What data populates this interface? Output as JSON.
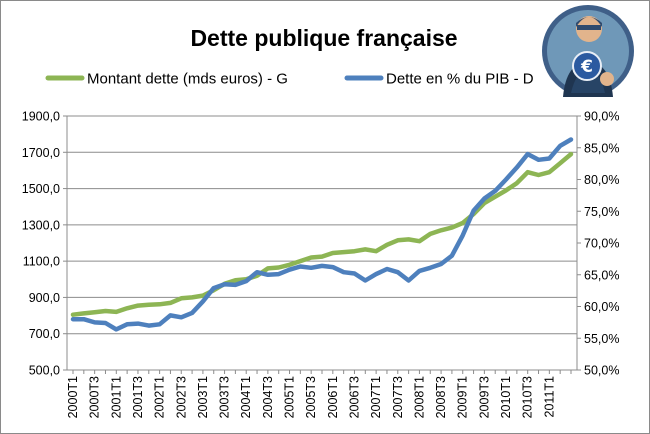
{
  "chart_data": {
    "type": "line",
    "title": "Dette publique française",
    "grid": "horizontal",
    "legend_position": "top",
    "y_left": {
      "ylim": [
        500,
        1900
      ],
      "ticks": [
        "500,0",
        "700,0",
        "900,0",
        "1100,0",
        "1300,0",
        "1500,0",
        "1700,0",
        "1900,0"
      ]
    },
    "y_right": {
      "ylim": [
        50,
        90
      ],
      "ticks": [
        "50,0%",
        "55,0%",
        "60,0%",
        "65,0%",
        "70,0%",
        "75,0%",
        "80,0%",
        "85,0%",
        "90,0%"
      ]
    },
    "x_tick_labels": [
      "2000T1",
      "2000T3",
      "2001T1",
      "2001T3",
      "2002T1",
      "2002T3",
      "2003T1",
      "2003T3",
      "2004T1",
      "2004T3",
      "2005T1",
      "2005T3",
      "2006T1",
      "2006T3",
      "2007T1",
      "2007T3",
      "2008T1",
      "2008T3",
      "2009T1",
      "2009T3",
      "2010T1",
      "2010T3",
      "2011T1"
    ],
    "categories": [
      "2000T1",
      "2000T2",
      "2000T3",
      "2000T4",
      "2001T1",
      "2001T2",
      "2001T3",
      "2001T4",
      "2002T1",
      "2002T2",
      "2002T3",
      "2002T4",
      "2003T1",
      "2003T2",
      "2003T3",
      "2003T4",
      "2004T1",
      "2004T2",
      "2004T3",
      "2004T4",
      "2005T1",
      "2005T2",
      "2005T3",
      "2005T4",
      "2006T1",
      "2006T2",
      "2006T3",
      "2006T4",
      "2007T1",
      "2007T2",
      "2007T3",
      "2007T4",
      "2008T1",
      "2008T2",
      "2008T3",
      "2008T4",
      "2009T1",
      "2009T2",
      "2009T3",
      "2009T4",
      "2010T1",
      "2010T2",
      "2010T3",
      "2010T4",
      "2011T1",
      "2011T2",
      "2011T3"
    ],
    "series": [
      {
        "name": "Montant dette (mds euros) - G",
        "axis": "left",
        "color": "#8db554",
        "values": [
          805,
          812,
          818,
          825,
          820,
          840,
          855,
          860,
          862,
          870,
          895,
          900,
          910,
          940,
          975,
          995,
          1000,
          1020,
          1060,
          1065,
          1080,
          1100,
          1120,
          1125,
          1145,
          1150,
          1155,
          1165,
          1155,
          1190,
          1215,
          1220,
          1210,
          1250,
          1270,
          1285,
          1310,
          1360,
          1420,
          1455,
          1490,
          1530,
          1590,
          1575,
          1590,
          1640,
          1690
        ]
      },
      {
        "name": "Dette en % du PIB - D",
        "axis": "right",
        "color": "#4e80bd",
        "values": [
          58.0,
          58.0,
          57.5,
          57.4,
          56.4,
          57.2,
          57.3,
          57.0,
          57.2,
          58.6,
          58.3,
          59.0,
          60.8,
          62.9,
          63.5,
          63.4,
          64.0,
          65.4,
          65.0,
          65.1,
          65.8,
          66.3,
          66.1,
          66.4,
          66.2,
          65.4,
          65.2,
          64.1,
          65.1,
          65.9,
          65.4,
          64.1,
          65.6,
          66.1,
          66.7,
          68.0,
          71.2,
          75.1,
          77.0,
          78.2,
          80.0,
          81.9,
          84.0,
          83.1,
          83.3,
          85.3,
          86.3
        ]
      }
    ]
  }
}
